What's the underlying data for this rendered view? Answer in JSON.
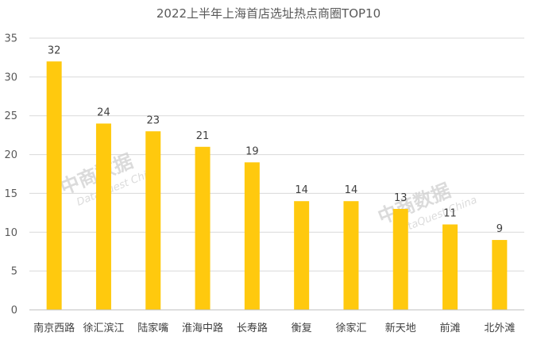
{
  "chart_data": {
    "type": "bar",
    "title": "2022上半年上海首店选址热点商圈TOP10",
    "categories": [
      "南京西路",
      "徐汇滨江",
      "陆家嘴",
      "淮海中路",
      "长寿路",
      "衡复",
      "徐家汇",
      "新天地",
      "前滩",
      "北外滩"
    ],
    "values": [
      32,
      24,
      23,
      21,
      19,
      14,
      14,
      13,
      11,
      9
    ],
    "ylim": [
      0,
      35
    ],
    "yticks": [
      0,
      5,
      10,
      15,
      20,
      25,
      30,
      35
    ],
    "grid": true,
    "data_labels": true,
    "bar_color": "#FFC90E"
  },
  "watermark": {
    "brand": "中商数据",
    "sub": "DataQuest China"
  }
}
